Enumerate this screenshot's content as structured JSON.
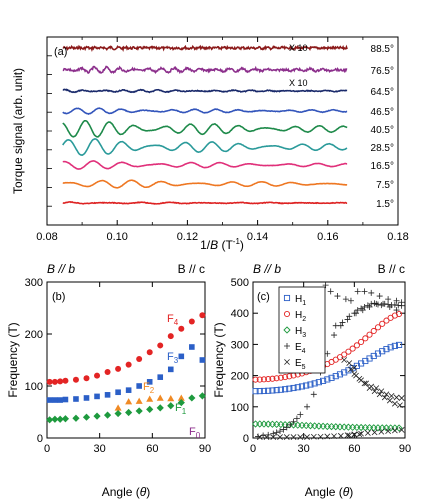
{
  "chart_data": [
    {
      "panel": "(a)",
      "type": "line",
      "xlabel_pre": "1/",
      "xlabel_var": "B",
      "xlabel_post": " (T",
      "xlabel_sup": "-1",
      "xlabel_close": ")",
      "ylabel": "Torque signal (arb. unit)",
      "xlim": [
        0.08,
        0.18
      ],
      "xticks": [
        "0.08",
        "0.10",
        "0.12",
        "0.14",
        "0.16",
        "0.18"
      ],
      "x_start": 0.0845,
      "x_end": 0.1655,
      "annotations": [
        "X 10",
        "X 10"
      ],
      "series": [
        {
          "name": "88.5°",
          "color": "#8b1a1a",
          "amp": 0.25,
          "freqs": [
            430,
            470
          ],
          "noise": 1.2,
          "x10": true
        },
        {
          "name": "76.5°",
          "color": "#8c2f8c",
          "amp": 0.9,
          "freqs": [
            260,
            310
          ],
          "noise": 1.0,
          "x10": false
        },
        {
          "name": "64.5°",
          "color": "#1a2a6b",
          "amp": 0.45,
          "freqs": [
            190,
            225
          ],
          "noise": 0.4,
          "x10": true
        },
        {
          "name": "46.5°",
          "color": "#3355bb",
          "amp": 0.9,
          "freqs": [
            150,
            180
          ],
          "noise": 0.25,
          "x10": false
        },
        {
          "name": "40.5°",
          "color": "#1e8a4a",
          "amp": 2.6,
          "freqs": [
            135,
            165
          ],
          "noise": 0.2,
          "x10": false
        },
        {
          "name": "28.5°",
          "color": "#2a9a9a",
          "amp": 2.6,
          "freqs": [
            120,
            150
          ],
          "noise": 0.15,
          "x10": false
        },
        {
          "name": "16.5°",
          "color": "#e0307a",
          "amp": 1.3,
          "freqs": [
            110,
            140
          ],
          "noise": 0.15,
          "x10": false
        },
        {
          "name": "7.5°",
          "color": "#ee7722",
          "amp": 1.4,
          "freqs": [
            108,
            135
          ],
          "noise": 0.15,
          "x10": false
        },
        {
          "name": "1.5°",
          "color": "#dd2222",
          "amp": 0.3,
          "freqs": [
            106,
            140
          ],
          "noise": 0.3,
          "x10": false
        }
      ]
    },
    {
      "panel": "(b)",
      "type": "scatter",
      "top_left_pre": "B // ",
      "top_left_var": "b",
      "top_right": "B // c",
      "xlabel_pre": "Angle (",
      "xlabel_var": "θ",
      "xlabel_post": ")",
      "ylabel": "Frequency (T)",
      "xlim": [
        0,
        90
      ],
      "ylim": [
        0,
        300
      ],
      "xticks": [
        0,
        30,
        60,
        90
      ],
      "yticks": [
        0,
        100,
        200,
        300
      ],
      "series": [
        {
          "name": "F4",
          "base": "F",
          "sub": "4",
          "color": "#e32424",
          "marker": "circle",
          "x": [
            1.5,
            4.5,
            7.5,
            10.5,
            16.5,
            22.5,
            28.5,
            34.5,
            40.5,
            46.5,
            52.5,
            58.5,
            64.5,
            70.5,
            76.5,
            82.5,
            88.5
          ],
          "y": [
            108,
            108,
            109,
            110,
            112,
            115,
            120,
            127,
            133,
            141,
            152,
            165,
            178,
            196,
            210,
            224,
            236
          ]
        },
        {
          "name": "F3",
          "base": "F",
          "sub": "3",
          "color": "#2b5fc7",
          "marker": "square",
          "x": [
            1.5,
            4.5,
            7.5,
            10.5,
            16.5,
            22.5,
            28.5,
            34.5,
            40.5,
            46.5,
            52.5,
            58.5,
            64.5,
            70.5,
            76.5,
            82.5,
            88.5
          ],
          "y": [
            73,
            73,
            73,
            74,
            75,
            77,
            80,
            83,
            88,
            92,
            100,
            108,
            117,
            132,
            157,
            175,
            150
          ]
        },
        {
          "name": "F2",
          "base": "F",
          "sub": "2",
          "color": "#f08a24",
          "marker": "triangle",
          "x": [
            40.5,
            46.5,
            52.5,
            58.5,
            64.5,
            70.5,
            76.5
          ],
          "y": [
            58,
            70,
            71,
            75,
            77,
            76,
            77
          ]
        },
        {
          "name": "F1",
          "base": "F",
          "sub": "1",
          "color": "#1e9a3e",
          "marker": "diamond",
          "x": [
            1.5,
            4.5,
            7.5,
            10.5,
            16.5,
            22.5,
            28.5,
            34.5,
            40.5,
            46.5,
            52.5,
            58.5,
            64.5,
            70.5,
            76.5,
            82.5,
            88.5
          ],
          "y": [
            35,
            36,
            36,
            37,
            38,
            40,
            42,
            44,
            47,
            49,
            52,
            55,
            58,
            62,
            68,
            77,
            81
          ]
        },
        {
          "name": "F0",
          "base": "F",
          "sub": "0",
          "color": "#8c2f8c",
          "marker": "none",
          "x": [],
          "y": []
        }
      ]
    },
    {
      "panel": "(c)",
      "type": "scatter",
      "top_left_pre": "B // ",
      "top_left_var": "b",
      "top_right": "B // c",
      "xlabel_pre": "Angle (",
      "xlabel_var": "θ",
      "xlabel_post": ")",
      "ylabel": "Frequency (T)",
      "xlim": [
        0,
        90
      ],
      "ylim": [
        0,
        500
      ],
      "xticks": [
        0,
        30,
        60,
        90
      ],
      "yticks": [
        0,
        100,
        200,
        300,
        400,
        500
      ],
      "legend_position": "top-left",
      "series": [
        {
          "name": "H1",
          "base": "H",
          "sub": "1",
          "color": "#2b5fc7",
          "marker": "open-square",
          "formula": {
            "a": 150,
            "b": 300
          }
        },
        {
          "name": "H2",
          "base": "H",
          "sub": "2",
          "color": "#e32424",
          "marker": "open-circle",
          "formula": {
            "a": 187,
            "b": 400
          }
        },
        {
          "name": "H3",
          "base": "H",
          "sub": "3",
          "color": "#1e9a3e",
          "marker": "open-diamond",
          "formula": {
            "a": 45,
            "b": 32
          }
        },
        {
          "name": "E4",
          "base": "E",
          "sub": "4",
          "color": "#222222",
          "marker": "plus",
          "x": [
            3,
            6,
            9,
            12,
            14,
            16,
            18,
            20,
            22,
            24,
            26,
            28,
            32,
            36,
            40,
            44,
            48,
            52,
            56,
            60,
            62,
            64,
            66,
            68,
            70,
            72,
            74,
            76,
            78,
            80,
            82,
            84,
            86,
            88,
            43,
            46,
            50,
            55,
            58,
            62,
            66,
            70,
            75,
            80,
            85,
            88,
            49,
            53,
            57,
            61,
            65,
            69,
            73,
            77,
            81,
            85
          ],
          "y": [
            5,
            8,
            10,
            14,
            18,
            22,
            27,
            34,
            42,
            52,
            62,
            75,
            100,
            140,
            210,
            270,
            330,
            360,
            380,
            400,
            410,
            415,
            420,
            425,
            430,
            432,
            428,
            426,
            430,
            428,
            426,
            427,
            425,
            424,
            490,
            470,
            455,
            445,
            440,
            470,
            470,
            465,
            455,
            445,
            440,
            435,
            360,
            370,
            390,
            400,
            410,
            420,
            430,
            430,
            420,
            410
          ]
        },
        {
          "name": "E5",
          "base": "E",
          "sub": "5",
          "color": "#222222",
          "marker": "cross",
          "x": [
            4,
            8,
            12,
            16,
            20,
            24,
            28,
            32,
            36,
            40,
            44,
            48,
            52,
            56,
            60,
            64,
            68,
            72,
            76,
            80,
            84,
            88,
            58,
            61,
            64,
            67,
            70,
            73,
            76,
            79,
            82,
            85,
            88,
            60,
            63,
            66,
            69,
            72,
            75,
            78,
            81,
            84,
            87,
            54,
            57,
            60,
            57,
            60,
            63
          ],
          "y": [
            3,
            3,
            3,
            3,
            3,
            3,
            3,
            3,
            4,
            4,
            5,
            6,
            7,
            9,
            12,
            14,
            16,
            18,
            20,
            22,
            24,
            26,
            220,
            200,
            185,
            175,
            165,
            160,
            150,
            140,
            135,
            130,
            128,
            205,
            190,
            175,
            160,
            150,
            140,
            130,
            120,
            110,
            105,
            250,
            240,
            225,
            8,
            10,
            12
          ]
        }
      ]
    }
  ]
}
